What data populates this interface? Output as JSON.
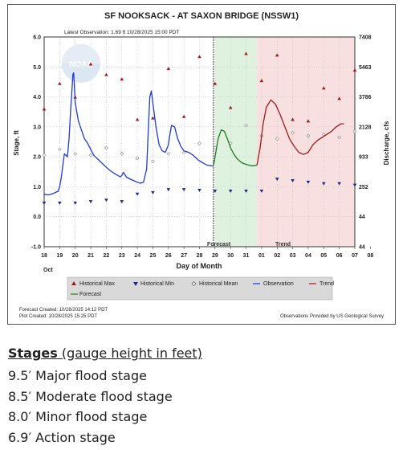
{
  "chart_data": {
    "type": "line",
    "title": "SF NOOKSACK - AT SAXON BRIDGE  (NSSW1)",
    "latest_observation": "Latest Observation: 1.69 ft 10/28/2025 15:00 PDT",
    "ylabel": "Stage, ft",
    "ylabel_right": "Discharge, cfs",
    "xlabel": "Day of Month",
    "month_label": "Oct",
    "ylim": [
      -1.0,
      6.0
    ],
    "y_ticks": [
      "6.0",
      "5.0",
      "4.0",
      "3.0",
      "2.0",
      "1.0",
      "0.0",
      "-1.0"
    ],
    "y_tick_values": [
      6,
      5,
      4,
      3,
      2,
      1,
      0,
      -1
    ],
    "right_ticks": [
      "7408",
      "5463",
      "3786",
      "2128",
      "933",
      "252",
      "44",
      "44"
    ],
    "x_tick_labels": [
      "18",
      "19",
      "20",
      "21",
      "22",
      "23",
      "24",
      "25",
      "26",
      "27",
      "28",
      "29",
      "30",
      "31",
      "01",
      "02",
      "03",
      "04",
      "05",
      "06",
      "07",
      "08"
    ],
    "forecast_label": "Forecast",
    "trend_label": "Trend",
    "legend": {
      "hist_max": "Historical Max",
      "hist_min": "Historical Min",
      "hist_mean": "Historical Mean",
      "observation": "Observation",
      "trend": "Trend",
      "forecast": "Forecast"
    },
    "footer": {
      "forecast_created": "Forecast Created: 10/28/2025 14:12 PDT",
      "plot_created": "Plot Created: 10/28/2025 15:25 PDT",
      "credit": "Observations Provided by US Geological Survey"
    },
    "logo_text": "NOAA",
    "colors": {
      "observation": "#1f3ad6",
      "forecast": "#1e7d1e",
      "trend": "#a31a1a",
      "hist_max": "#a31a1a",
      "hist_min": "#1a2a8c",
      "forecast_band": "#dff2df",
      "trend_band": "#f9e0e0"
    },
    "series": [
      {
        "name": "Observation",
        "x": [
          18.0,
          18.3,
          18.6,
          18.9,
          19.0,
          19.1,
          19.2,
          19.3,
          19.5,
          19.6,
          19.7,
          19.8,
          19.85,
          19.9,
          20.0,
          20.2,
          20.4,
          20.6,
          20.8,
          21.0,
          21.2,
          21.5,
          21.8,
          22.0,
          22.3,
          22.6,
          22.9,
          23.0,
          23.1,
          23.3,
          23.6,
          23.8,
          24.0,
          24.2,
          24.4,
          24.6,
          24.7,
          24.8,
          24.9,
          25.0,
          25.2,
          25.4,
          25.6,
          25.8,
          26.0,
          26.1,
          26.2,
          26.4,
          26.6,
          26.8,
          27.0,
          27.3,
          27.6,
          27.9,
          28.2,
          28.5,
          28.9
        ],
        "y": [
          0.75,
          0.73,
          0.78,
          0.85,
          1.0,
          1.3,
          1.7,
          2.1,
          2.0,
          2.6,
          3.5,
          4.3,
          4.75,
          4.8,
          3.8,
          3.2,
          2.9,
          2.6,
          2.45,
          2.25,
          2.05,
          1.9,
          1.75,
          1.65,
          1.52,
          1.42,
          1.33,
          1.38,
          1.48,
          1.32,
          1.24,
          1.2,
          1.15,
          1.12,
          1.15,
          1.6,
          2.8,
          4.0,
          4.2,
          3.8,
          3.0,
          2.4,
          2.2,
          2.15,
          2.4,
          2.75,
          3.05,
          3.0,
          2.6,
          2.35,
          2.2,
          2.15,
          2.05,
          1.9,
          1.8,
          1.72,
          1.69
        ]
      },
      {
        "name": "Forecast",
        "x": [
          28.9,
          29.0,
          29.2,
          29.4,
          29.6,
          29.8,
          30.0,
          30.2,
          30.4,
          30.6,
          30.8,
          31.0,
          31.3,
          31.5,
          31.7
        ],
        "y": [
          1.69,
          2.0,
          2.6,
          2.9,
          2.85,
          2.6,
          2.3,
          2.1,
          1.95,
          1.85,
          1.78,
          1.75,
          1.7,
          1.7,
          1.72
        ]
      },
      {
        "name": "Trend",
        "x": [
          31.7,
          31.9,
          32.1,
          32.3,
          32.6,
          32.9,
          33.2,
          33.5,
          33.8,
          34.1,
          34.4,
          34.7,
          35.0,
          35.3,
          35.6,
          35.9,
          36.2,
          36.5,
          36.8,
          37.1,
          37.3
        ],
        "y": [
          1.72,
          2.3,
          3.1,
          3.65,
          3.9,
          3.75,
          3.4,
          3.0,
          2.6,
          2.35,
          2.15,
          2.08,
          2.15,
          2.4,
          2.55,
          2.65,
          2.75,
          2.85,
          3.0,
          3.1,
          3.1
        ]
      }
    ],
    "historical_max": {
      "x": [
        18,
        19,
        20,
        21,
        22,
        23,
        24,
        25,
        26,
        27,
        28,
        29,
        30,
        31,
        32,
        33,
        34,
        35,
        36,
        37,
        38
      ],
      "y": [
        3.6,
        4.45,
        4.0,
        5.1,
        4.75,
        4.6,
        3.25,
        3.3,
        4.95,
        3.35,
        5.35,
        4.45,
        3.65,
        5.45,
        4.55,
        5.4,
        3.25,
        3.2,
        4.3,
        3.95,
        4.9
      ]
    },
    "historical_min": {
      "x": [
        18,
        19,
        20,
        21,
        22,
        23,
        24,
        25,
        26,
        27,
        28,
        29,
        30,
        31,
        32,
        33,
        34,
        35,
        36,
        37,
        38
      ],
      "y": [
        0.45,
        0.45,
        0.45,
        0.5,
        0.55,
        0.5,
        0.75,
        0.8,
        0.9,
        0.9,
        0.88,
        0.85,
        0.85,
        0.85,
        0.85,
        1.25,
        1.2,
        1.15,
        1.1,
        1.1,
        1.05
      ]
    },
    "historical_mean": {
      "x": [
        18,
        19,
        20,
        21,
        22,
        23,
        24,
        25,
        26,
        27,
        28,
        29,
        30,
        31,
        32,
        33,
        34,
        35,
        36,
        37,
        38
      ],
      "y": [
        2.05,
        2.25,
        2.1,
        2.05,
        2.3,
        2.1,
        1.95,
        1.85,
        2.1,
        2.15,
        2.45,
        2.3,
        2.45,
        3.05,
        2.7,
        2.6,
        2.8,
        2.7,
        2.75,
        2.65,
        2.85
      ]
    },
    "forecast_band_x": [
      29.0,
      31.7
    ],
    "trend_band_x": [
      31.7,
      38.0
    ],
    "current_time_x": 28.9,
    "grid": true,
    "xlim": [
      18,
      38
    ]
  },
  "stages": {
    "heading_bold": "Stages",
    "heading_rest": " (gauge height in feet)",
    "items": [
      "9.5′ Major flood stage",
      "8.5′ Moderate flood stage",
      "8.0′ Minor flood stage",
      "6.9′ Action stage"
    ]
  }
}
